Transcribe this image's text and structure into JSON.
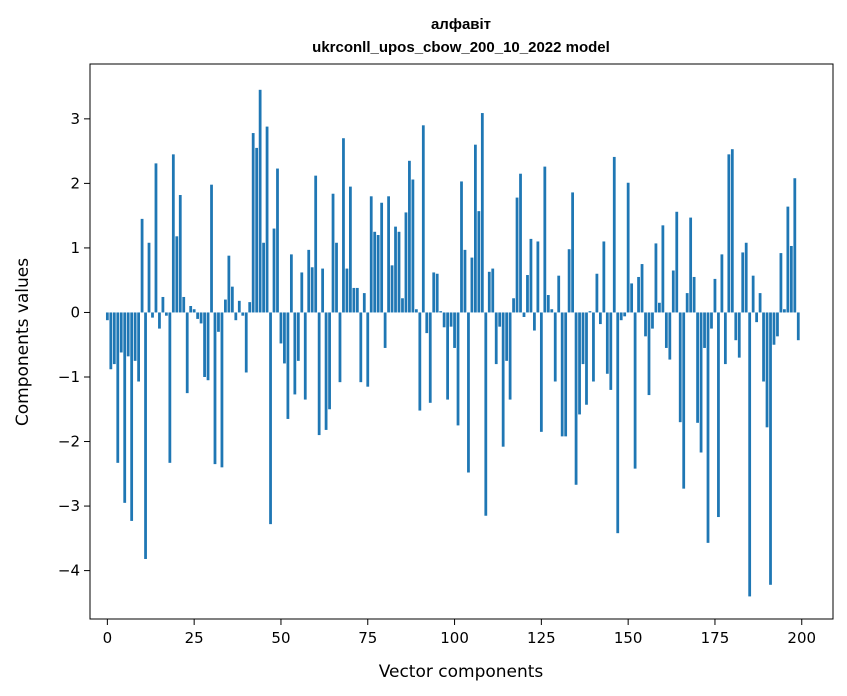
{
  "chart_data": {
    "type": "bar",
    "title_line1": "алфавіт",
    "title_line2": "ukrconll_upos_cbow_200_10_2022 model",
    "xlabel": "Vector components",
    "ylabel": "Components values",
    "xlim": [
      -5,
      209
    ],
    "ylim": [
      -4.75,
      3.85
    ],
    "xticks": [
      0,
      25,
      50,
      75,
      100,
      125,
      150,
      175,
      200
    ],
    "yticks": [
      -4,
      -3,
      -2,
      -1,
      0,
      1,
      2,
      3
    ],
    "grid": false,
    "bar_color": "#1f77b4",
    "values": [
      -0.12,
      -0.88,
      -0.8,
      -2.33,
      -0.62,
      -2.95,
      -0.68,
      -3.23,
      -0.75,
      -1.07,
      1.45,
      -3.82,
      1.08,
      -0.08,
      2.31,
      -0.25,
      0.24,
      -0.05,
      -2.33,
      2.45,
      1.18,
      1.82,
      0.24,
      -1.25,
      0.1,
      0.05,
      -0.1,
      -0.17,
      -1.0,
      -1.05,
      1.98,
      -2.35,
      -0.3,
      -2.4,
      0.2,
      0.88,
      0.4,
      -0.12,
      0.18,
      -0.05,
      -0.93,
      0.16,
      2.78,
      2.55,
      3.45,
      1.08,
      2.88,
      -3.28,
      1.3,
      2.23,
      -0.48,
      -0.79,
      -1.65,
      0.9,
      -1.27,
      -0.75,
      0.62,
      -1.35,
      0.97,
      0.7,
      2.12,
      -1.9,
      0.68,
      -1.82,
      -1.5,
      1.84,
      1.08,
      -1.08,
      2.7,
      0.68,
      1.95,
      0.38,
      0.38,
      -1.08,
      0.3,
      -1.15,
      1.8,
      1.25,
      1.2,
      1.7,
      -0.55,
      1.8,
      0.73,
      1.33,
      1.25,
      0.22,
      1.55,
      2.35,
      2.06,
      0.05,
      -1.52,
      2.9,
      -0.32,
      -1.4,
      0.62,
      0.6,
      0.02,
      -0.23,
      -1.35,
      -0.22,
      -0.55,
      -1.75,
      2.03,
      0.97,
      -2.48,
      0.85,
      2.6,
      1.57,
      3.09,
      -3.15,
      0.63,
      0.68,
      -0.8,
      -0.22,
      -2.08,
      -0.75,
      -1.35,
      0.22,
      1.78,
      2.15,
      -0.07,
      0.58,
      1.14,
      -0.28,
      1.1,
      -1.85,
      2.26,
      0.27,
      0.05,
      -1.07,
      0.57,
      -1.92,
      -1.92,
      0.98,
      1.86,
      -2.67,
      -1.58,
      -0.8,
      -1.43,
      0.02,
      -1.07,
      0.6,
      -0.18,
      1.1,
      -0.95,
      -1.2,
      2.41,
      -3.42,
      -0.12,
      -0.06,
      2.01,
      0.45,
      -2.42,
      0.55,
      0.75,
      -0.37,
      -1.28,
      -0.25,
      1.07,
      0.15,
      1.35,
      -0.55,
      -0.73,
      0.65,
      1.56,
      -1.7,
      -2.73,
      0.3,
      1.47,
      0.55,
      -1.71,
      -2.17,
      -0.55,
      -3.57,
      -0.25,
      0.52,
      -3.17,
      0.9,
      -0.8,
      2.45,
      2.53,
      -0.43,
      -0.7,
      0.93,
      1.08,
      -4.4,
      0.57,
      -0.15,
      0.3,
      -1.07,
      -1.78,
      -4.22,
      -0.5,
      -0.37,
      0.92,
      0.05,
      1.64,
      1.03,
      2.08,
      -0.43
    ]
  }
}
